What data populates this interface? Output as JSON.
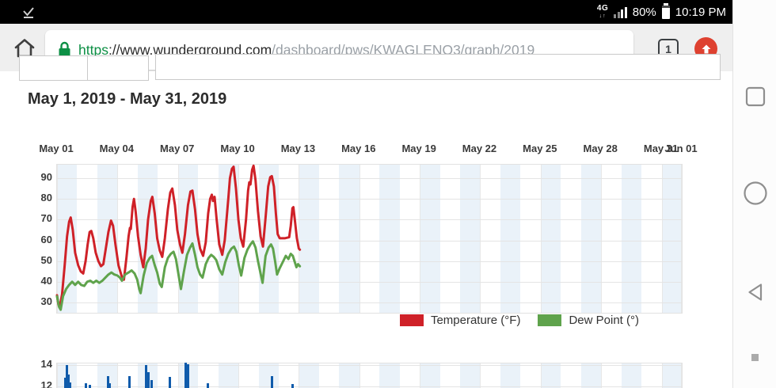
{
  "status_bar": {
    "download_done_icon": "check-underline",
    "network_label": "4G",
    "network_arrows": "↓↑",
    "battery_percent": "80%",
    "time": "10:19 PM"
  },
  "browser": {
    "url_scheme": "https",
    "url_host": "://www.wunderground.com",
    "url_path": "/dashboard/pws/KWAGLENO3/graph/2019",
    "tab_count": "1"
  },
  "page": {
    "date_range_heading": "May 1, 2019 - May 31, 2019"
  },
  "colors": {
    "temperature_line": "#cf2128",
    "dew_point_line": "#5fa34c",
    "gust_bar": "#0f5bab",
    "day_stripe": "#eaf2f9",
    "grid_line": "#e4e4e4",
    "accent_button": "#de4130",
    "secure_green": "#0d8f45"
  },
  "chart_data": [
    {
      "type": "line",
      "title": "",
      "xlabel": "",
      "ylabel": "",
      "x_unit": "days since May 1 2019 00:00",
      "xlim_days": [
        0,
        31
      ],
      "ylim": [
        25.05,
        96.5
      ],
      "grid": true,
      "legend_position": "bottom-right",
      "x_ticks": [
        {
          "day": 0,
          "label": "May 01"
        },
        {
          "day": 3,
          "label": "May 04"
        },
        {
          "day": 6,
          "label": "May 07"
        },
        {
          "day": 9,
          "label": "May 10"
        },
        {
          "day": 12,
          "label": "May 13"
        },
        {
          "day": 15,
          "label": "May 16"
        },
        {
          "day": 18,
          "label": "May 19"
        },
        {
          "day": 21,
          "label": "May 22"
        },
        {
          "day": 24,
          "label": "May 25"
        },
        {
          "day": 27,
          "label": "May 28"
        },
        {
          "day": 30,
          "label": "May 31"
        },
        {
          "day": 31,
          "label": "Jun 01"
        }
      ],
      "y_ticks": [
        30,
        40,
        50,
        60,
        70,
        80,
        90
      ],
      "legend": [
        {
          "name": "Temperature (°F)",
          "color": "#cf2128"
        },
        {
          "name": "Dew Point (°)",
          "color": "#5fa34c"
        }
      ],
      "series": [
        {
          "name": "Temperature (°F)",
          "color": "#cf2128",
          "points": [
            [
              0,
              33.5
            ],
            [
              0.07,
              29
            ],
            [
              0.13,
              27.5
            ],
            [
              0.25,
              34
            ],
            [
              0.38,
              48
            ],
            [
              0.5,
              62
            ],
            [
              0.6,
              69
            ],
            [
              0.68,
              71
            ],
            [
              0.78,
              65
            ],
            [
              0.9,
              54
            ],
            [
              1.05,
              48
            ],
            [
              1.18,
              45
            ],
            [
              1.3,
              44
            ],
            [
              1.42,
              50
            ],
            [
              1.52,
              58
            ],
            [
              1.62,
              64
            ],
            [
              1.7,
              64.5
            ],
            [
              1.8,
              61
            ],
            [
              1.92,
              54
            ],
            [
              2.05,
              50
            ],
            [
              2.18,
              47.5
            ],
            [
              2.3,
              48.5
            ],
            [
              2.42,
              56
            ],
            [
              2.55,
              64
            ],
            [
              2.68,
              69.5
            ],
            [
              2.78,
              67
            ],
            [
              2.9,
              58
            ],
            [
              3.05,
              48
            ],
            [
              3.2,
              43
            ],
            [
              3.32,
              41
            ],
            [
              3.45,
              52
            ],
            [
              3.55,
              62
            ],
            [
              3.62,
              66
            ],
            [
              3.66,
              65.5
            ],
            [
              3.75,
              76
            ],
            [
              3.82,
              80
            ],
            [
              3.9,
              74
            ],
            [
              4.02,
              62
            ],
            [
              4.15,
              53
            ],
            [
              4.28,
              47
            ],
            [
              4.4,
              56
            ],
            [
              4.52,
              70
            ],
            [
              4.65,
              79
            ],
            [
              4.73,
              81
            ],
            [
              4.85,
              73
            ],
            [
              4.97,
              61
            ],
            [
              5.1,
              55
            ],
            [
              5.22,
              52
            ],
            [
              5.35,
              61
            ],
            [
              5.5,
              75
            ],
            [
              5.62,
              83
            ],
            [
              5.72,
              85
            ],
            [
              5.85,
              77
            ],
            [
              5.97,
              65
            ],
            [
              6.1,
              58
            ],
            [
              6.22,
              54
            ],
            [
              6.35,
              63
            ],
            [
              6.5,
              77
            ],
            [
              6.62,
              83.5
            ],
            [
              6.72,
              84
            ],
            [
              6.85,
              75
            ],
            [
              6.97,
              63
            ],
            [
              7.1,
              56
            ],
            [
              7.25,
              52.5
            ],
            [
              7.38,
              59
            ],
            [
              7.5,
              73
            ],
            [
              7.6,
              80
            ],
            [
              7.68,
              82
            ],
            [
              7.74,
              79
            ],
            [
              7.82,
              81
            ],
            [
              7.92,
              70
            ],
            [
              8.05,
              58
            ],
            [
              8.2,
              53
            ],
            [
              8.32,
              60
            ],
            [
              8.42,
              71
            ],
            [
              8.5,
              80
            ],
            [
              8.58,
              90
            ],
            [
              8.68,
              94.5
            ],
            [
              8.76,
              95.5
            ],
            [
              8.88,
              85
            ],
            [
              9.0,
              70
            ],
            [
              9.12,
              61
            ],
            [
              9.24,
              57
            ],
            [
              9.38,
              70
            ],
            [
              9.48,
              84
            ],
            [
              9.54,
              88
            ],
            [
              9.6,
              87
            ],
            [
              9.68,
              94
            ],
            [
              9.75,
              96
            ],
            [
              9.85,
              89
            ],
            [
              9.97,
              74
            ],
            [
              10.1,
              62
            ],
            [
              10.22,
              57
            ],
            [
              10.35,
              71
            ],
            [
              10.48,
              86
            ],
            [
              10.58,
              90.5
            ],
            [
              10.66,
              91
            ],
            [
              10.76,
              86
            ],
            [
              10.86,
              73
            ],
            [
              10.95,
              63
            ],
            [
              11.05,
              61
            ],
            [
              11.3,
              61
            ],
            [
              11.52,
              61.5
            ],
            [
              11.6,
              67
            ],
            [
              11.68,
              75.5
            ],
            [
              11.73,
              76
            ],
            [
              11.8,
              70
            ],
            [
              11.9,
              61
            ],
            [
              12.0,
              56
            ],
            [
              12.05,
              55.5
            ]
          ]
        },
        {
          "name": "Dew Point (°)",
          "color": "#5fa34c",
          "points": [
            [
              0,
              33
            ],
            [
              0.1,
              28
            ],
            [
              0.18,
              26.5
            ],
            [
              0.3,
              33
            ],
            [
              0.45,
              36.5
            ],
            [
              0.6,
              38.5
            ],
            [
              0.75,
              40
            ],
            [
              0.9,
              38.5
            ],
            [
              1.05,
              40
            ],
            [
              1.2,
              38.5
            ],
            [
              1.35,
              38
            ],
            [
              1.5,
              40
            ],
            [
              1.65,
              40.5
            ],
            [
              1.8,
              39.5
            ],
            [
              1.95,
              40.5
            ],
            [
              2.1,
              39.5
            ],
            [
              2.25,
              40.5
            ],
            [
              2.4,
              42
            ],
            [
              2.55,
              43.5
            ],
            [
              2.7,
              44.5
            ],
            [
              2.85,
              43.5
            ],
            [
              3.0,
              43
            ],
            [
              3.12,
              42
            ],
            [
              3.22,
              40.5
            ],
            [
              3.38,
              43.5
            ],
            [
              3.55,
              44.5
            ],
            [
              3.7,
              45.5
            ],
            [
              3.85,
              44
            ],
            [
              3.98,
              41
            ],
            [
              4.08,
              36.5
            ],
            [
              4.15,
              34.5
            ],
            [
              4.3,
              43
            ],
            [
              4.45,
              49
            ],
            [
              4.6,
              51.5
            ],
            [
              4.72,
              52.5
            ],
            [
              4.85,
              48
            ],
            [
              4.97,
              44.5
            ],
            [
              5.1,
              39
            ],
            [
              5.2,
              37.5
            ],
            [
              5.35,
              47
            ],
            [
              5.5,
              51.5
            ],
            [
              5.65,
              53.5
            ],
            [
              5.78,
              54.5
            ],
            [
              5.9,
              51
            ],
            [
              6.02,
              44
            ],
            [
              6.15,
              36.5
            ],
            [
              6.3,
              45
            ],
            [
              6.45,
              53
            ],
            [
              6.6,
              56.5
            ],
            [
              6.72,
              58.5
            ],
            [
              6.85,
              53
            ],
            [
              6.97,
              47
            ],
            [
              7.1,
              43.5
            ],
            [
              7.22,
              42
            ],
            [
              7.38,
              48.5
            ],
            [
              7.52,
              51.5
            ],
            [
              7.65,
              53
            ],
            [
              7.78,
              52
            ],
            [
              7.9,
              50.5
            ],
            [
              8.05,
              46
            ],
            [
              8.2,
              43.5
            ],
            [
              8.35,
              49.5
            ],
            [
              8.5,
              53.5
            ],
            [
              8.65,
              56
            ],
            [
              8.78,
              57
            ],
            [
              8.9,
              54.5
            ],
            [
              9.02,
              48
            ],
            [
              9.14,
              43
            ],
            [
              9.3,
              51.5
            ],
            [
              9.45,
              55.5
            ],
            [
              9.6,
              58
            ],
            [
              9.72,
              59.5
            ],
            [
              9.85,
              56.5
            ],
            [
              9.97,
              50
            ],
            [
              10.1,
              44
            ],
            [
              10.2,
              39.5
            ],
            [
              10.35,
              52.5
            ],
            [
              10.5,
              56.5
            ],
            [
              10.62,
              58
            ],
            [
              10.72,
              56
            ],
            [
              10.82,
              50
            ],
            [
              10.92,
              43.5
            ],
            [
              11.05,
              46.5
            ],
            [
              11.2,
              49.5
            ],
            [
              11.35,
              52.5
            ],
            [
              11.48,
              51
            ],
            [
              11.6,
              53.5
            ],
            [
              11.7,
              52.5
            ],
            [
              11.8,
              49.5
            ],
            [
              11.88,
              47
            ],
            [
              11.96,
              48.5
            ],
            [
              12.05,
              47.5
            ]
          ]
        }
      ]
    },
    {
      "type": "bar",
      "title": "",
      "x_unit": "days since May 1 2019 00:00",
      "xlim_days": [
        0,
        31
      ],
      "y_ticks": [
        12,
        14
      ],
      "grid": true,
      "series": [
        {
          "name": "",
          "color": "#0f5bab",
          "bars": [
            [
              0.4,
              12.8
            ],
            [
              0.5,
              14
            ],
            [
              0.58,
              13.1
            ],
            [
              0.66,
              12.4
            ],
            [
              1.45,
              12.3
            ],
            [
              1.62,
              12.15
            ],
            [
              2.55,
              13
            ],
            [
              2.62,
              12.3
            ],
            [
              3.58,
              13
            ],
            [
              4.42,
              14
            ],
            [
              4.52,
              13.3
            ],
            [
              4.68,
              12.6
            ],
            [
              5.6,
              12.9
            ],
            [
              6.38,
              14.2
            ],
            [
              6.5,
              14.1
            ],
            [
              7.48,
              12.3
            ],
            [
              10.68,
              13
            ],
            [
              11.68,
              12.2
            ]
          ]
        }
      ]
    }
  ]
}
